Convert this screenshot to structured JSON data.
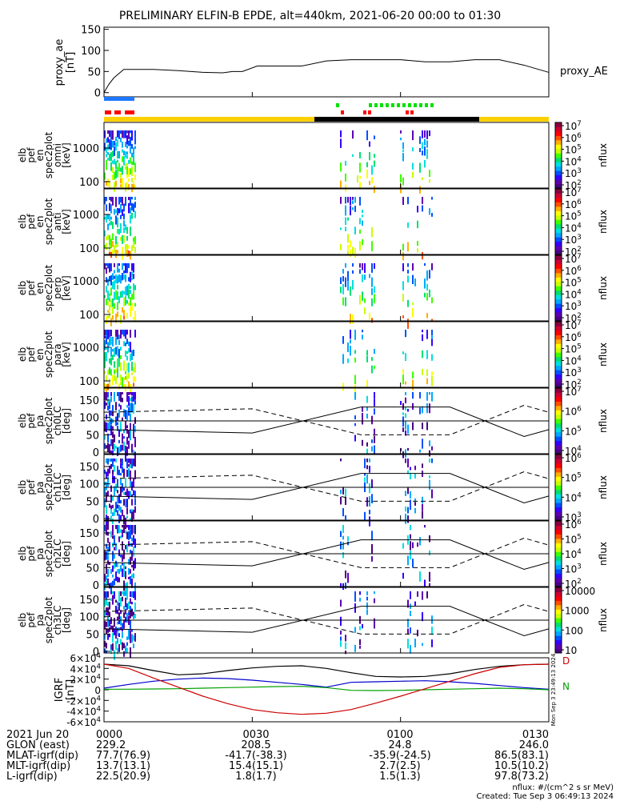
{
  "title": "PRELIMINARY ELFIN-B EPDE, alt=440km, 2021-06-20 00:00 to 01:30",
  "colors": {
    "orbit_bar_day": "#ffd000",
    "orbit_bar_night": "#000000",
    "ind_blue": "#1e78ff",
    "ind_red": "#ff0000",
    "ind_green": "#00e000",
    "igrf_x": "#cc0000",
    "igrf_y": "#00a000",
    "igrf_z": "#0000cc",
    "igrf_total": "#000000"
  },
  "footer": {
    "row_labels": [
      "2021 Jun 20",
      "GLON (east)",
      "MLAT-igrf(dip)",
      "MLT-igrf(dip)",
      "L-igrf(dip)"
    ],
    "columns": [
      {
        "time": "0000",
        "glon": "229.2",
        "mlat": "77.7(76.9)",
        "mlt": "13.7(13.1)",
        "l": "22.5(20.9)"
      },
      {
        "time": "0030",
        "glon": "208.5",
        "mlat": "-41.7(-38.3)",
        "mlt": "15.4(15.1)",
        "l": "1.8(1.7)"
      },
      {
        "time": "0100",
        "glon": "24.8",
        "mlat": "-35.9(-24.5)",
        "mlt": "2.7(2.5)",
        "l": "1.5(1.3)"
      },
      {
        "time": "0130",
        "glon": "246.0",
        "mlat": "86.5(83.1)",
        "mlt": "10.5(10.2)",
        "l": "97.8(73.2)"
      }
    ],
    "units_note": "nflux: #/(cm^2 s sr MeV)",
    "created": "Created: Tue Sep  3 06:49:13 2024",
    "side_stamp": "Mon Sep  3 23:49:13 2024"
  },
  "chart_data": [
    {
      "type": "line",
      "ylabel": "proxy_ae [nT]",
      "series_label": "proxy_AE",
      "ylim": [
        -10,
        155
      ],
      "yticks": [
        0,
        50,
        100,
        150
      ],
      "x": [
        0,
        1,
        2,
        4,
        7,
        10,
        15,
        20,
        24,
        26,
        28,
        31,
        34,
        37,
        40,
        45,
        50,
        55,
        60,
        65,
        70,
        75,
        80,
        85,
        90
      ],
      "values": [
        0,
        20,
        35,
        55,
        55,
        55,
        52,
        48,
        47,
        50,
        50,
        63,
        63,
        63,
        63,
        75,
        78,
        78,
        78,
        73,
        73,
        78,
        78,
        65,
        48
      ]
    },
    {
      "type": "heatmap",
      "panels": [
        {
          "ylabel": "elb pef en spec2plot omni [keV]",
          "yticks": [
            "100",
            "1000"
          ],
          "cbar": [
            "10^{2}",
            "10^{3}",
            "10^{4}",
            "10^{5}",
            "10^{6}",
            "10^{7}"
          ],
          "cbar_label": "nflux"
        },
        {
          "ylabel": "elb pef en spec2plot anti [keV]",
          "yticks": [
            "100",
            "1000"
          ],
          "cbar": [
            "10^{2}",
            "10^{3}",
            "10^{4}",
            "10^{5}",
            "10^{6}",
            "10^{7}"
          ],
          "cbar_label": "nflux"
        },
        {
          "ylabel": "elb pef en spec2plot perp [keV]",
          "yticks": [
            "100",
            "1000"
          ],
          "cbar": [
            "10^{2}",
            "10^{3}",
            "10^{4}",
            "10^{5}",
            "10^{6}",
            "10^{7}"
          ],
          "cbar_label": "nflux"
        },
        {
          "ylabel": "elb pef en spec2plot para [keV]",
          "yticks": [
            "100",
            "1000"
          ],
          "cbar": [
            "10^{2}",
            "10^{3}",
            "10^{4}",
            "10^{5}",
            "10^{6}",
            "10^{7}"
          ],
          "cbar_label": "nflux"
        },
        {
          "ylabel": "elb pef pa spec2plot ch0LC [deg]",
          "yticks": [
            "0",
            "50",
            "100",
            "150"
          ],
          "cbar": [
            "10^{4}",
            "10^{5}",
            "10^{6}",
            "10^{7}"
          ],
          "cbar_label": "nflux"
        },
        {
          "ylabel": "elb pef pa spec2plot ch1LC [deg]",
          "yticks": [
            "0",
            "50",
            "100",
            "150"
          ],
          "cbar": [
            "10^{3}",
            "10^{4}",
            "10^{5}",
            "10^{6}"
          ],
          "cbar_label": "nflux"
        },
        {
          "ylabel": "elb pef pa spec2plot ch2LC [deg]",
          "yticks": [
            "0",
            "50",
            "100",
            "150"
          ],
          "cbar": [
            "10^{2}",
            "10^{3}",
            "10^{4}",
            "10^{5}",
            "10^{6}"
          ],
          "cbar_label": "nflux"
        },
        {
          "ylabel": "elb pef pa spec2plot ch3LC [deg]",
          "yticks": [
            "0",
            "50",
            "100",
            "150"
          ],
          "cbar": [
            "10",
            "100",
            "1000",
            "10000"
          ],
          "cbar_label": "nflux"
        }
      ]
    },
    {
      "type": "line",
      "ylabel": "IGRF [nT]",
      "ylim": [
        -60000,
        60000
      ],
      "yticks": [
        "-6×10^4",
        "-4×10^4",
        "-2×10^4",
        "0",
        "2×10^4",
        "4×10^4",
        "6×10^4"
      ],
      "right_labels": [
        "D",
        "N"
      ],
      "series": [
        {
          "color": "#000000",
          "x": [
            0,
            5,
            10,
            15,
            20,
            25,
            30,
            35,
            40,
            45,
            50,
            55,
            60,
            65,
            70,
            75,
            80,
            85,
            90
          ],
          "values": [
            48000,
            45000,
            36000,
            28000,
            30000,
            36000,
            41000,
            44000,
            45000,
            40000,
            32000,
            25000,
            24000,
            25000,
            30000,
            38000,
            44000,
            47000,
            48000
          ]
        },
        {
          "color": "#0000cc",
          "x": [
            0,
            5,
            10,
            15,
            20,
            25,
            30,
            35,
            40,
            45,
            50,
            55,
            60,
            65,
            70,
            75,
            80,
            85,
            90
          ],
          "values": [
            3000,
            10000,
            16000,
            20000,
            22000,
            21000,
            18000,
            14000,
            10000,
            5000,
            14000,
            15000,
            16000,
            17000,
            15000,
            12000,
            8000,
            4000,
            1000
          ]
        },
        {
          "color": "#00a000",
          "x": [
            0,
            5,
            10,
            15,
            20,
            25,
            30,
            35,
            40,
            45,
            50,
            55,
            60,
            65,
            70,
            75,
            80,
            85,
            90
          ],
          "values": [
            1000,
            1000,
            1500,
            2000,
            3000,
            4000,
            5000,
            6000,
            6500,
            4000,
            -1000,
            -1500,
            -1000,
            0,
            1000,
            2000,
            3000,
            2000,
            0
          ]
        },
        {
          "color": "#cc0000",
          "x": [
            0,
            5,
            10,
            15,
            20,
            25,
            30,
            35,
            40,
            45,
            50,
            55,
            60,
            65,
            70,
            75,
            80,
            85,
            90
          ],
          "values": [
            48000,
            40000,
            22000,
            5000,
            -12000,
            -26000,
            -37000,
            -43000,
            -46000,
            -44000,
            -37000,
            -25000,
            -12000,
            2000,
            16000,
            30000,
            42000,
            47000,
            48000
          ]
        }
      ]
    }
  ]
}
